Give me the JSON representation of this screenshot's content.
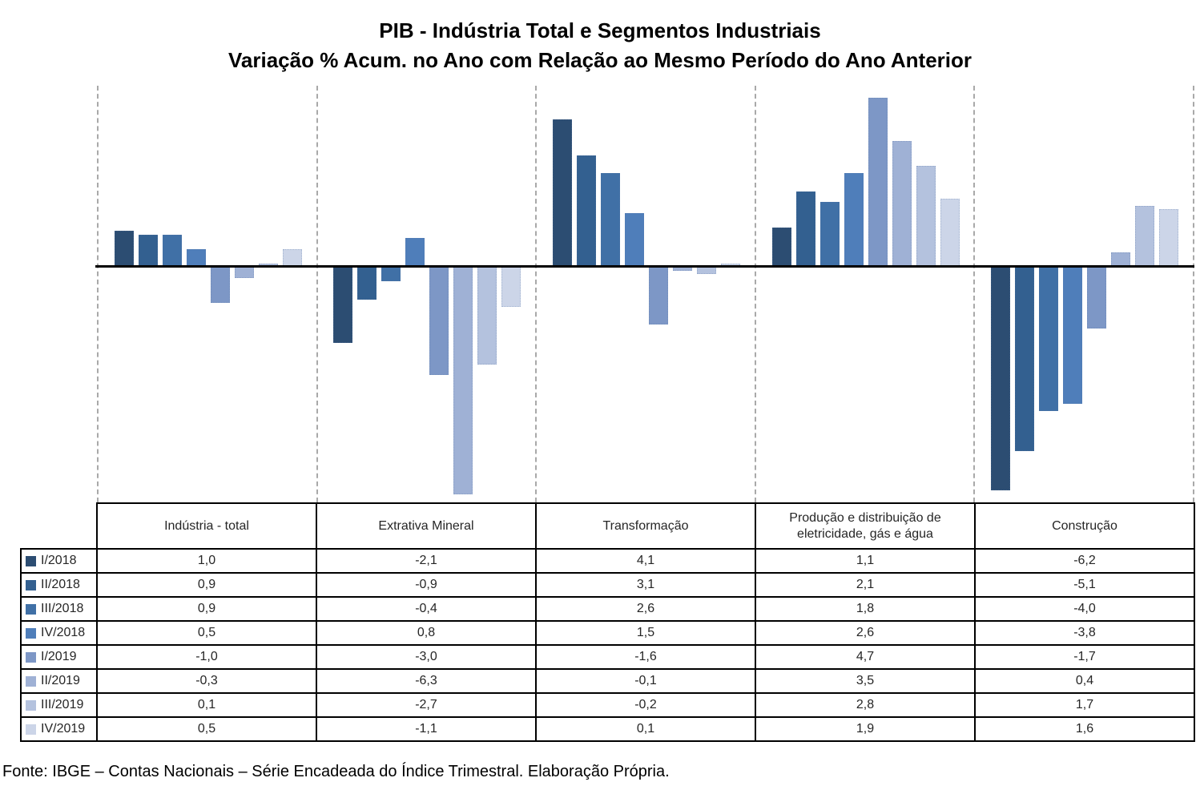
{
  "title": {
    "line1": "PIB - Indústria Total e Segmentos Industriais",
    "line2": "Variação % Acum. no Ano com Relação ao Mesmo Período do Ano Anterior"
  },
  "footer": {
    "text": "Fonte: IBGE – Contas Nacionais – Série Encadeada do Índice Trimestral. Elaboração Própria."
  },
  "chart_data": {
    "type": "bar",
    "title": "PIB - Indústria Total e Segmentos Industriais",
    "subtitle": "Variação % Acum. no Ano com Relação ao Mesmo Período do Ano Anterior",
    "categories": [
      "Indústria - total",
      "Extrativa Mineral",
      "Transformação",
      "Produção e distribuição de eletricidade, gás e água",
      "Construção"
    ],
    "series": [
      {
        "name": "I/2018",
        "color": "#2C4D72",
        "values": [
          1.0,
          -2.1,
          4.1,
          1.1,
          -6.2
        ]
      },
      {
        "name": "II/2018",
        "color": "#336090",
        "values": [
          0.9,
          -0.9,
          3.1,
          2.1,
          -5.1
        ]
      },
      {
        "name": "III/2018",
        "color": "#4070A6",
        "values": [
          0.9,
          -0.4,
          2.6,
          1.8,
          -4.0
        ]
      },
      {
        "name": "IV/2018",
        "color": "#4F7EBA",
        "values": [
          0.5,
          0.8,
          1.5,
          2.6,
          -3.8
        ]
      },
      {
        "name": "I/2019",
        "color": "#7D97C6",
        "values": [
          -1.0,
          -3.0,
          -1.6,
          4.7,
          -1.7
        ]
      },
      {
        "name": "II/2019",
        "color": "#9FB1D5",
        "values": [
          -0.3,
          -6.3,
          -0.1,
          3.5,
          0.4
        ]
      },
      {
        "name": "III/2019",
        "color": "#B4C2DE",
        "values": [
          0.1,
          -2.7,
          -0.2,
          2.8,
          1.7
        ]
      },
      {
        "name": "IV/2019",
        "color": "#CCD5E8",
        "values": [
          0.5,
          -1.1,
          0.1,
          1.9,
          1.6
        ]
      }
    ],
    "ylim": [
      -6.5,
      5.0
    ],
    "grid": "vertical dashed gray category separators only; solid black zero line; no y-axis labels",
    "legend_position": "left column of data table below chart",
    "decimal_separator": ","
  },
  "table": {
    "header_columns": [
      "Indústria - total",
      "Extrativa Mineral",
      "Transformação",
      "Produção e distribuição de eletricidade, gás e água",
      "Construção"
    ],
    "rows": [
      {
        "label": "I/2018",
        "values": [
          "1,0",
          "-2,1",
          "4,1",
          "1,1",
          "-6,2"
        ]
      },
      {
        "label": "II/2018",
        "values": [
          "0,9",
          "-0,9",
          "3,1",
          "2,1",
          "-5,1"
        ]
      },
      {
        "label": "III/2018",
        "values": [
          "0,9",
          "-0,4",
          "2,6",
          "1,8",
          "-4,0"
        ]
      },
      {
        "label": "IV/2018",
        "values": [
          "0,5",
          "0,8",
          "1,5",
          "2,6",
          "-3,8"
        ]
      },
      {
        "label": "I/2019",
        "values": [
          "-1,0",
          "-3,0",
          "-1,6",
          "4,7",
          "-1,7"
        ]
      },
      {
        "label": "II/2019",
        "values": [
          "-0,3",
          "-6,3",
          "-0,1",
          "3,5",
          "0,4"
        ]
      },
      {
        "label": "III/2019",
        "values": [
          "0,1",
          "-2,7",
          "-0,2",
          "2,8",
          "1,7"
        ]
      },
      {
        "label": "IV/2019",
        "values": [
          "0,5",
          "-1,1",
          "0,1",
          "1,9",
          "1,6"
        ]
      }
    ]
  }
}
